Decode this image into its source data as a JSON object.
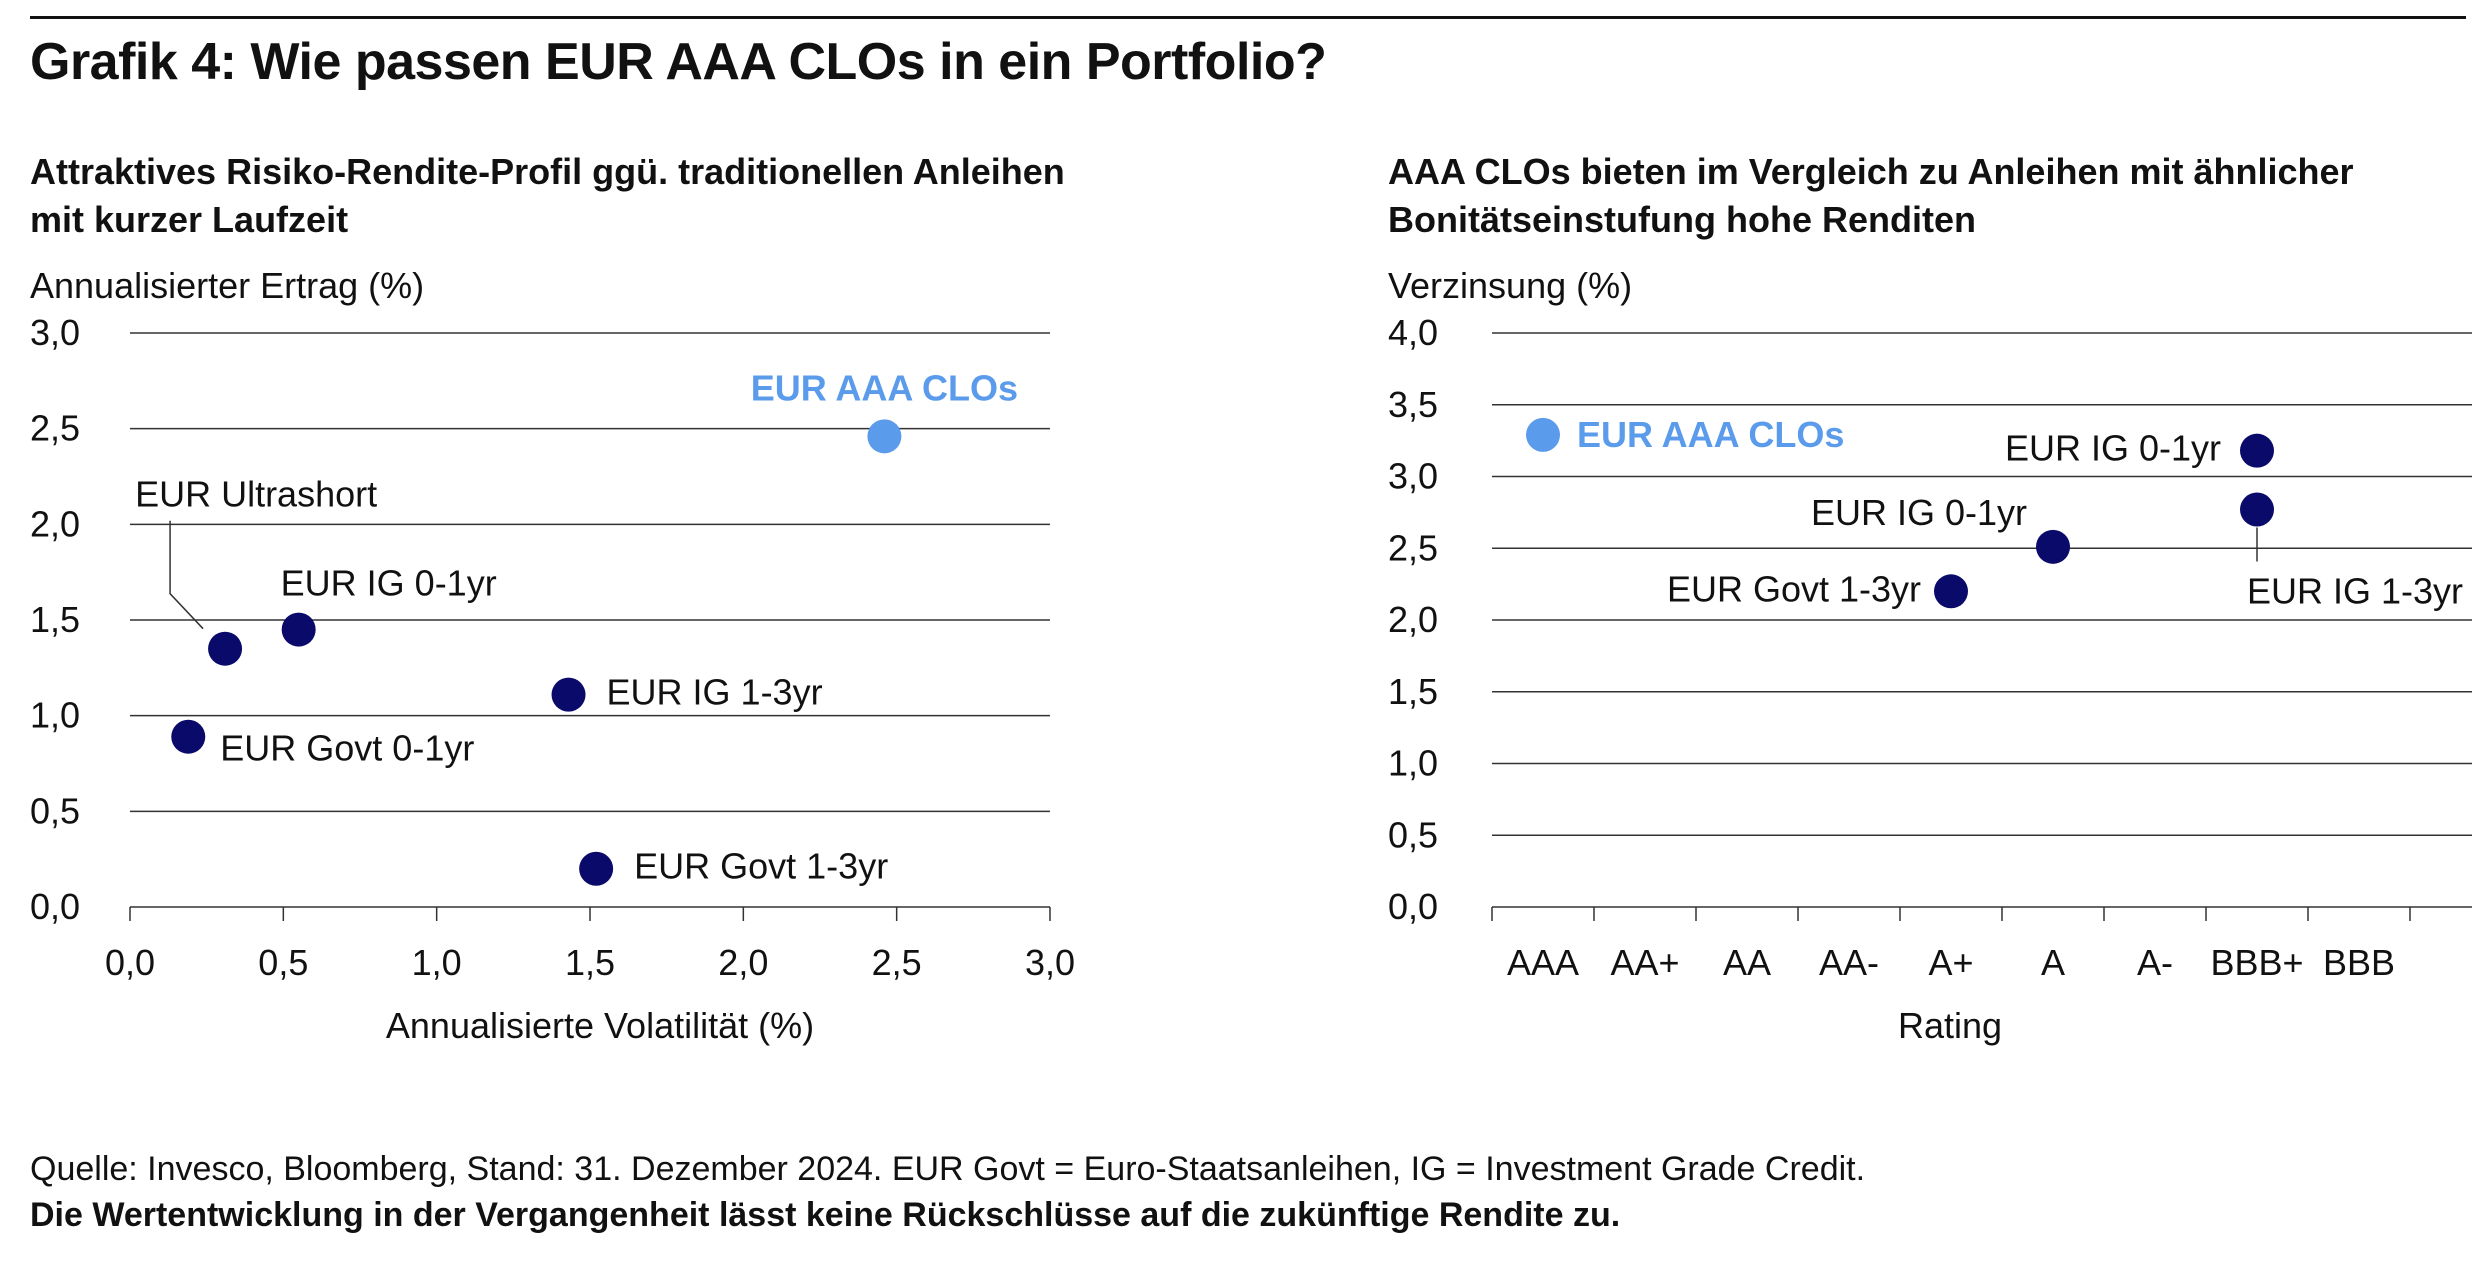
{
  "title": "Grafik 4: Wie passen EUR AAA CLOs in ein Portfolio?",
  "colors": {
    "highlight": "#5B9BEB",
    "series": "#0A0A6B",
    "grid": "#333333"
  },
  "left_panel": {
    "subtitle_line1": "Attraktives Risiko-Rendite-Profil ggü. traditionellen Anleihen",
    "subtitle_line2": "mit kurzer Laufzeit"
  },
  "right_panel": {
    "subtitle_line1": "AAA CLOs bieten im Vergleich zu Anleihen mit ähnlicher",
    "subtitle_line2": "Bonitätseinstufung hohe Renditen"
  },
  "chart_data": [
    {
      "type": "scatter",
      "ylabel": "Annualisierter Ertrag (%)",
      "xlabel": "Annualisierte Volatilität (%)",
      "xlim": [
        0,
        3
      ],
      "ylim": [
        0,
        3
      ],
      "x_ticks": [
        "0,0",
        "0,5",
        "1,0",
        "1,5",
        "2,0",
        "2,5",
        "3,0"
      ],
      "y_ticks": [
        "0,0",
        "0,5",
        "1,0",
        "1,5",
        "2,0",
        "2,5",
        "3,0"
      ],
      "grid": "horizontal",
      "points": [
        {
          "label": "EUR AAA CLOs",
          "x": 2.46,
          "y": 2.46,
          "highlight": true
        },
        {
          "label": "EUR Ultrashort",
          "x": 0.31,
          "y": 1.35,
          "highlight": false
        },
        {
          "label": "EUR IG 0-1yr",
          "x": 0.55,
          "y": 1.45,
          "highlight": false
        },
        {
          "label": "EUR IG 1-3yr",
          "x": 1.43,
          "y": 1.11,
          "highlight": false
        },
        {
          "label": "EUR Govt 0-1yr",
          "x": 0.19,
          "y": 0.89,
          "highlight": false
        },
        {
          "label": "EUR Govt 1-3yr",
          "x": 1.52,
          "y": 0.2,
          "highlight": false
        }
      ]
    },
    {
      "type": "scatter",
      "ylabel": "Verzinsung (%)",
      "xlabel": "Rating",
      "categories": [
        "AAA",
        "AA+",
        "AA",
        "AA-",
        "A+",
        "A",
        "A-",
        "BBB+",
        "BBB"
      ],
      "ylim": [
        0,
        4
      ],
      "y_ticks": [
        "0,0",
        "0,5",
        "1,0",
        "1,5",
        "2,0",
        "2,5",
        "3,0",
        "3,5",
        "4,0"
      ],
      "grid": "horizontal",
      "points": [
        {
          "label": "EUR AAA CLOs",
          "category": "AAA",
          "y": 3.29,
          "highlight": true
        },
        {
          "label": "EUR IG 0-1yr",
          "category": "BBB+",
          "y": 3.18,
          "highlight": false
        },
        {
          "label": "EUR IG 1-3yr",
          "category": "BBB+",
          "y": 2.77,
          "highlight": false
        },
        {
          "label": "EUR IG 0-1yr",
          "category": "A",
          "y": 2.51,
          "highlight": false
        },
        {
          "label": "EUR Govt 1-3yr",
          "category": "A+",
          "y": 2.2,
          "highlight": false
        }
      ]
    }
  ],
  "footer": {
    "source": "Quelle: Invesco, Bloomberg, Stand: 31. Dezember 2024. EUR Govt = Euro-Staatsanleihen, IG = Investment Grade Credit.",
    "disclaimer": "Die Wertentwicklung in der Vergangenheit lässt keine Rückschlüsse auf die zukünftige Rendite zu."
  }
}
